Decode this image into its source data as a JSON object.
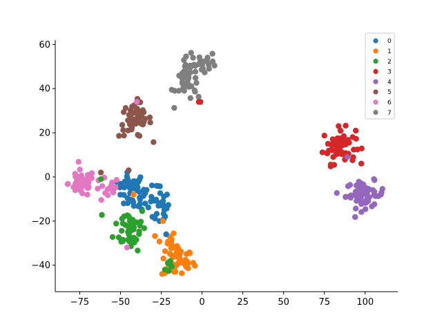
{
  "chart_data": {
    "type": "scatter",
    "xlim": [
      -90,
      120
    ],
    "ylim": [
      -52,
      62
    ],
    "xticks": [
      -75,
      -50,
      -25,
      0,
      25,
      50,
      75,
      100
    ],
    "yticks": [
      -40,
      -20,
      0,
      20,
      40,
      60
    ],
    "xtick_labels": [
      "−75",
      "−50",
      "−25",
      "0",
      "25",
      "50",
      "75",
      "100"
    ],
    "ytick_labels": [
      "−40",
      "−20",
      "0",
      "20",
      "40",
      "60"
    ],
    "legend_position": "top-right",
    "grid": false,
    "series": [
      {
        "name": "0",
        "color": "#1f77b4",
        "clusters": [
          {
            "cx": -44,
            "cy": -4,
            "sx": 5,
            "sy": 3,
            "n": 30
          },
          {
            "cx": -34,
            "cy": -10,
            "sx": 5,
            "sy": 4,
            "n": 25
          },
          {
            "cx": -26,
            "cy": -14,
            "sx": 3,
            "sy": 4,
            "n": 20
          }
        ]
      },
      {
        "name": "1",
        "color": "#ff7f0e",
        "clusters": [
          {
            "cx": -15,
            "cy": -38,
            "sx": 5,
            "sy": 4,
            "n": 45
          },
          {
            "cx": -22,
            "cy": -30,
            "sx": 3,
            "sy": 3,
            "n": 8
          }
        ]
      },
      {
        "name": "2",
        "color": "#2ca02c",
        "clusters": [
          {
            "cx": -44,
            "cy": -23,
            "sx": 5,
            "sy": 5,
            "n": 50
          },
          {
            "cx": -20,
            "cy": -40,
            "sx": 2,
            "sy": 2,
            "n": 6
          }
        ]
      },
      {
        "name": "3",
        "color": "#d62728",
        "clusters": [
          {
            "cx": 84,
            "cy": 14,
            "sx": 5,
            "sy": 4,
            "n": 60
          }
        ]
      },
      {
        "name": "4",
        "color": "#9467bd",
        "clusters": [
          {
            "cx": 100,
            "cy": -8,
            "sx": 6,
            "sy": 3,
            "n": 60
          }
        ]
      },
      {
        "name": "5",
        "color": "#8c564b",
        "clusters": [
          {
            "cx": -41,
            "cy": 26,
            "sx": 5,
            "sy": 4,
            "n": 50
          }
        ]
      },
      {
        "name": "6",
        "color": "#e377c2",
        "clusters": [
          {
            "cx": -74,
            "cy": -3,
            "sx": 4,
            "sy": 3,
            "n": 45
          },
          {
            "cx": -58,
            "cy": -6,
            "sx": 4,
            "sy": 3,
            "n": 15
          }
        ]
      },
      {
        "name": "7",
        "color": "#7f7f7f",
        "clusters": [
          {
            "cx": -8,
            "cy": 44,
            "sx": 4,
            "sy": 5,
            "n": 45
          },
          {
            "cx": 3,
            "cy": 52,
            "sx": 3,
            "sy": 2,
            "n": 15
          }
        ]
      }
    ],
    "extra_points": [
      {
        "series": "3",
        "x": -2,
        "y": 34
      },
      {
        "series": "3",
        "x": -1,
        "y": 34
      },
      {
        "series": "4",
        "x": 89,
        "y": 9
      },
      {
        "series": "4",
        "x": 88,
        "y": -9
      },
      {
        "series": "5",
        "x": -62,
        "y": 2
      },
      {
        "series": "5",
        "x": -45,
        "y": 3
      },
      {
        "series": "6",
        "x": -46,
        "y": -32
      },
      {
        "series": "6",
        "x": -40,
        "y": 34
      },
      {
        "series": "1",
        "x": -42,
        "y": -8
      },
      {
        "series": "1",
        "x": -24,
        "y": -20
      },
      {
        "series": "2",
        "x": -62,
        "y": -1
      },
      {
        "series": "0",
        "x": -22,
        "y": -26
      },
      {
        "series": "0",
        "x": -48,
        "y": -12
      }
    ]
  }
}
